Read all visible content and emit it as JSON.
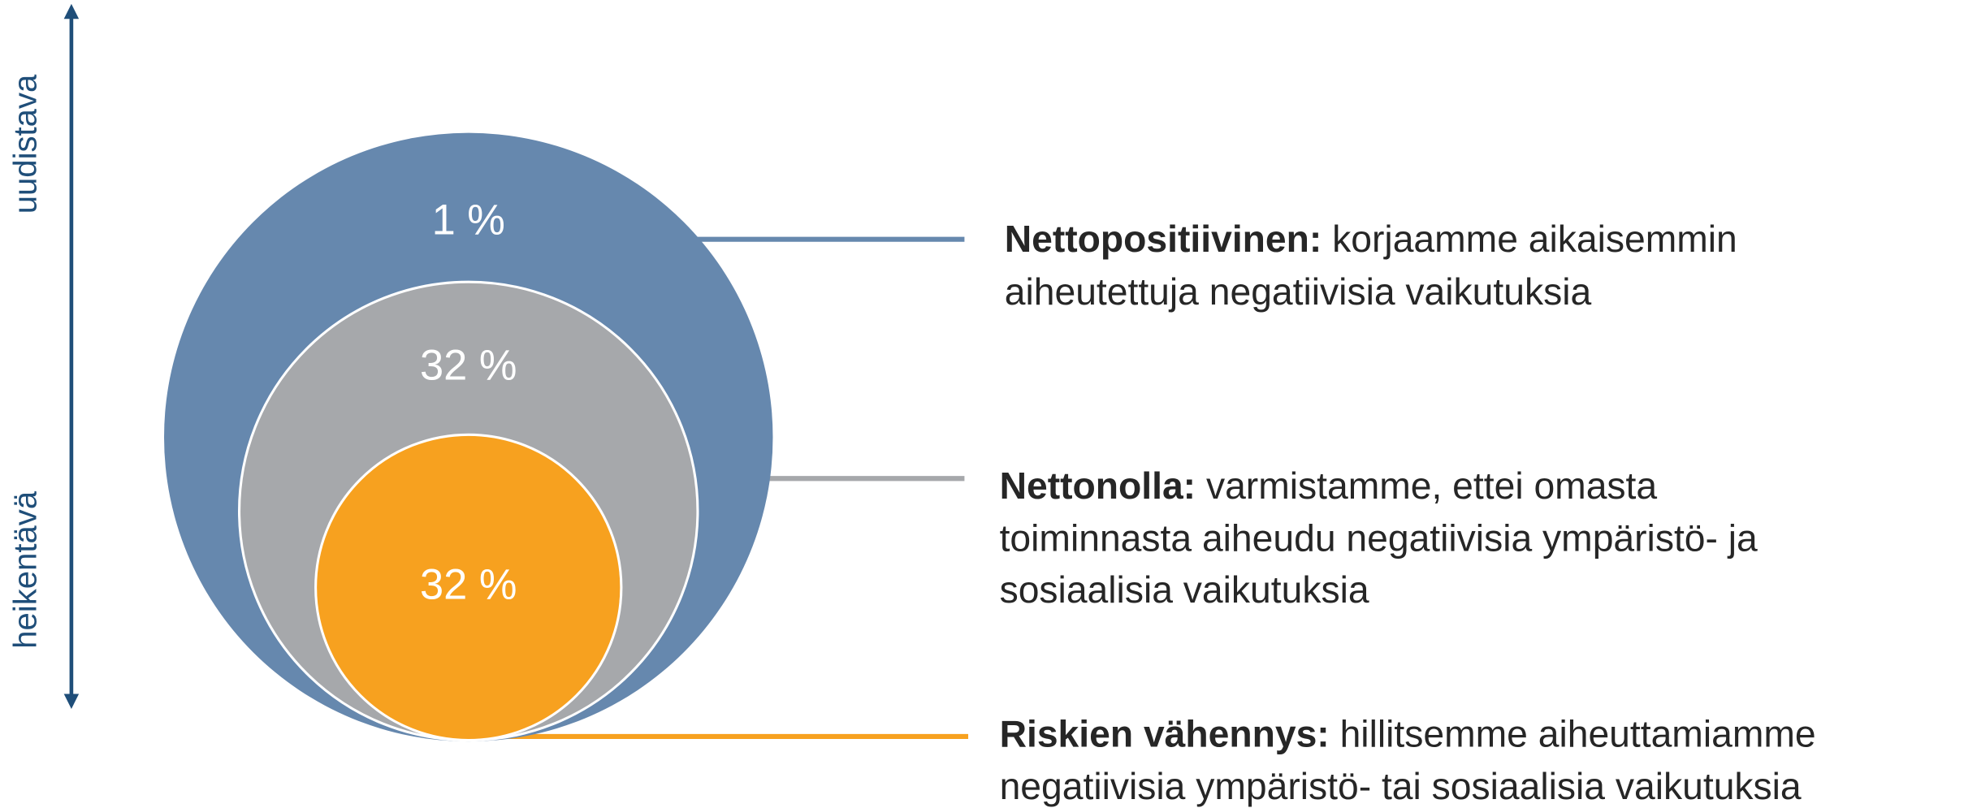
{
  "axis": {
    "top_label": "uudistava",
    "bottom_label": "heikentävä"
  },
  "levels": [
    {
      "percent": "1 %",
      "title": "Nettopositiivinen:",
      "description_lines": [
        "korjaamme aikaisemmin",
        "aiheutettuja negatiivisia vaikutuksia"
      ]
    },
    {
      "percent": "32 %",
      "title": "Nettonolla:",
      "description_lines": [
        "varmistamme, ettei omasta",
        "toiminnasta aiheudu negatiivisia ympäristö- ja",
        "sosiaalisia vaikutuksia"
      ]
    },
    {
      "percent": "32 %",
      "title": "Riskien vähennys:",
      "description_lines": [
        "hillitsemme aiheuttamiamme",
        "negatiivisia ympäristö- tai sosiaalisia vaikutuksia"
      ]
    }
  ]
}
